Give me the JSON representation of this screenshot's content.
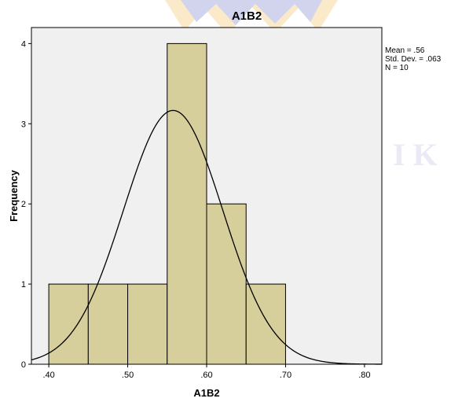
{
  "chart_data": {
    "type": "bar",
    "title": "A1B2",
    "xlabel": "A1B2",
    "ylabel": "Frequency",
    "x_tick_labels": [
      ".40",
      ".50",
      ".60",
      ".70",
      ".80"
    ],
    "x_ticks": [
      0.4,
      0.5,
      0.6,
      0.7,
      0.8
    ],
    "y_tick_labels": [
      "0",
      "1",
      "2",
      "3",
      "4"
    ],
    "y_ticks": [
      0,
      1,
      2,
      3,
      4
    ],
    "xlim": [
      0.378,
      0.822
    ],
    "ylim": [
      0,
      4.2
    ],
    "bins": [
      {
        "from": 0.4,
        "to": 0.45,
        "count": 1
      },
      {
        "from": 0.45,
        "to": 0.5,
        "count": 1
      },
      {
        "from": 0.5,
        "to": 0.55,
        "count": 1
      },
      {
        "from": 0.55,
        "to": 0.6,
        "count": 4
      },
      {
        "from": 0.6,
        "to": 0.65,
        "count": 2
      },
      {
        "from": 0.65,
        "to": 0.7,
        "count": 1
      }
    ],
    "bar_color": "#d6cf9c",
    "plot_background": "#f0f0f0",
    "normal_curve": {
      "mean": 0.5575,
      "sd": 0.063,
      "n": 10,
      "bin_width": 0.05
    },
    "stats": [
      "Mean = .56",
      "Std. Dev. = .063",
      "N = 10"
    ],
    "grid": false,
    "legend": "none"
  }
}
